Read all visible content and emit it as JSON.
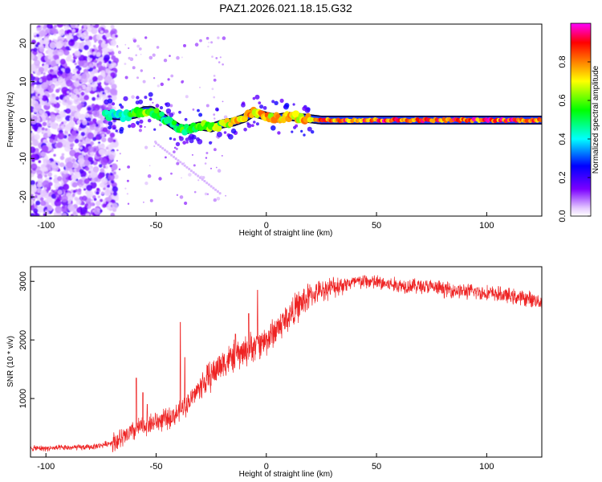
{
  "chart_data": [
    {
      "type": "heatmap",
      "title": "PAZ1.2026.021.18.15.G32",
      "xlabel": "Height of straight line (km)",
      "ylabel": "Frequency (Hz)",
      "xlim": [
        -107,
        125
      ],
      "ylim": [
        -25,
        25
      ],
      "xticks": [
        -100,
        -50,
        0,
        50,
        100
      ],
      "xtick_labels": [
        "-100",
        "-50",
        "0",
        "50",
        "100"
      ],
      "yticks": [
        -20,
        -10,
        0,
        10,
        20
      ],
      "ytick_labels": [
        "-20",
        "-10",
        "0",
        "10",
        "20"
      ],
      "colorbar": {
        "label": "Normalized spectral amplitude",
        "range": [
          0,
          1
        ],
        "ticks": [
          0.0,
          0.2,
          0.4,
          0.6,
          0.8
        ],
        "tick_labels": [
          "0.0",
          "0.2",
          "0.4",
          "0.6",
          "0.8"
        ],
        "colormap": [
          "#ffffff",
          "#7b00ff",
          "#0000ff",
          "#00ffff",
          "#00ff00",
          "#ffff00",
          "#ff8000",
          "#ff0000",
          "#ff00ff"
        ]
      },
      "noise_region_x": [
        -107,
        -68
      ],
      "ridge": {
        "x": [
          -73,
          -65,
          -60,
          -55,
          -52,
          -48,
          -44,
          -40,
          -36,
          -30,
          -25,
          -20,
          -15,
          -10,
          -6,
          -3,
          0,
          5,
          10,
          18,
          25,
          40,
          60,
          80,
          100,
          125
        ],
        "y": [
          1.5,
          1.0,
          1.5,
          2.5,
          2.5,
          1.0,
          -0.5,
          -2.0,
          -2.5,
          -1.5,
          -2.0,
          -1.0,
          -0.5,
          0.5,
          2.0,
          1.5,
          1.0,
          0.5,
          1.0,
          0.5,
          0.0,
          0.0,
          0.0,
          0.0,
          0.0,
          0.0
        ],
        "amplitude": [
          0.45,
          0.5,
          0.6,
          0.65,
          0.6,
          0.55,
          0.55,
          0.6,
          0.6,
          0.65,
          0.65,
          0.7,
          0.75,
          0.8,
          0.85,
          0.85,
          0.8,
          0.8,
          0.8,
          0.85,
          0.9,
          0.92,
          0.95,
          0.95,
          0.95,
          0.95
        ]
      }
    },
    {
      "type": "line",
      "xlabel": "Height of straight line (km)",
      "ylabel": "SNR (10 * v/v)",
      "xlim": [
        -107,
        125
      ],
      "ylim": [
        0,
        3250
      ],
      "xticks": [
        -100,
        -50,
        0,
        50,
        100
      ],
      "xtick_labels": [
        "-100",
        "-50",
        "0",
        "50",
        "100"
      ],
      "yticks": [
        1000,
        2000,
        3000
      ],
      "ytick_labels": [
        "1000",
        "2000",
        "3000"
      ],
      "color": "#ee2222",
      "x": [
        -107,
        -100,
        -90,
        -80,
        -75,
        -70,
        -65,
        -60,
        -55,
        -50,
        -45,
        -40,
        -35,
        -30,
        -25,
        -20,
        -15,
        -10,
        -5,
        0,
        5,
        10,
        15,
        20,
        25,
        30,
        35,
        40,
        45,
        50,
        55,
        60,
        65,
        70,
        75,
        80,
        85,
        90,
        95,
        100,
        105,
        110,
        115,
        120,
        125
      ],
      "y": [
        150,
        150,
        160,
        170,
        200,
        250,
        320,
        450,
        550,
        600,
        650,
        750,
        950,
        1200,
        1400,
        1600,
        1700,
        1800,
        1900,
        2000,
        2200,
        2400,
        2600,
        2750,
        2850,
        2900,
        2950,
        2980,
        3000,
        2980,
        2950,
        2930,
        2930,
        2920,
        2900,
        2870,
        2850,
        2830,
        2820,
        2800,
        2780,
        2750,
        2720,
        2700,
        2650
      ],
      "spikes": [
        {
          "x": -59,
          "y": 1350
        },
        {
          "x": -56,
          "y": 1100
        },
        {
          "x": -54,
          "y": 900
        },
        {
          "x": -39,
          "y": 2300
        },
        {
          "x": -37,
          "y": 1700
        },
        {
          "x": -4,
          "y": 2850
        },
        {
          "x": -8,
          "y": 2450
        },
        {
          "x": -14,
          "y": 2100
        }
      ]
    }
  ]
}
